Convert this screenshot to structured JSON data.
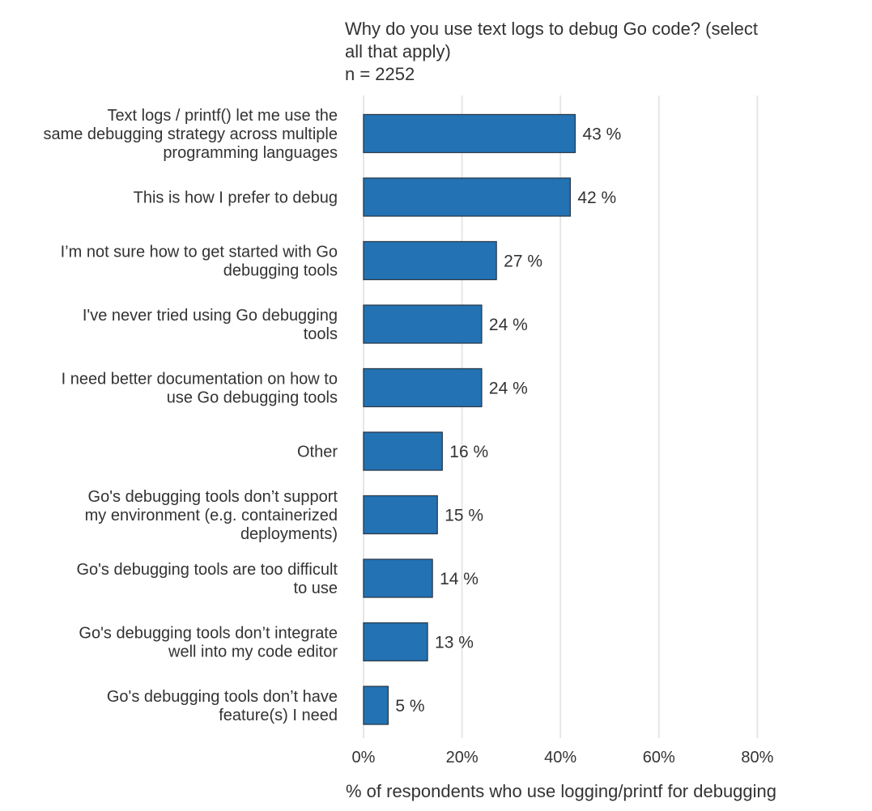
{
  "chart_data": {
    "type": "bar",
    "orientation": "horizontal",
    "title_lines": [
      "Why do you use text logs to debug Go code? (select",
      "all that apply)"
    ],
    "subtitle": "n = 2252",
    "xlabel": "% of respondents who use logging/printf for debugging",
    "ylabel": "",
    "xlim": [
      0,
      90
    ],
    "xticks": [
      0,
      20,
      40,
      60,
      80
    ],
    "xtick_labels": [
      "0%",
      "20%",
      "40%",
      "60%",
      "80%"
    ],
    "grid": "vertical",
    "bar_color": "#2272b4",
    "bar_edge_color": "#2b3a4a",
    "grid_color": "#e6e6e6",
    "categories": [
      [
        "Text logs / printf() let me use the",
        "same debugging strategy across multiple",
        "programming languages"
      ],
      [
        "This is how I prefer to debug"
      ],
      [
        "I’m not sure how to get started with Go",
        "debugging tools"
      ],
      [
        "I've never tried using Go debugging",
        "tools"
      ],
      [
        "I need better documentation on how to",
        "use Go debugging tools"
      ],
      [
        "Other"
      ],
      [
        "Go's debugging tools don’t support",
        "my environment (e.g. containerized",
        "deployments)"
      ],
      [
        "Go's debugging tools are too difficult",
        "to use"
      ],
      [
        "Go's debugging tools don’t integrate",
        "well into my code editor"
      ],
      [
        "Go's debugging tools don’t have",
        "feature(s) I need"
      ]
    ],
    "values": [
      43,
      42,
      27,
      24,
      24,
      16,
      15,
      14,
      13,
      5
    ],
    "value_labels": [
      "43 %",
      "42 %",
      "27 %",
      "24 %",
      "24 %",
      "16 %",
      "15 %",
      "14 %",
      "13 %",
      "5 %"
    ]
  }
}
